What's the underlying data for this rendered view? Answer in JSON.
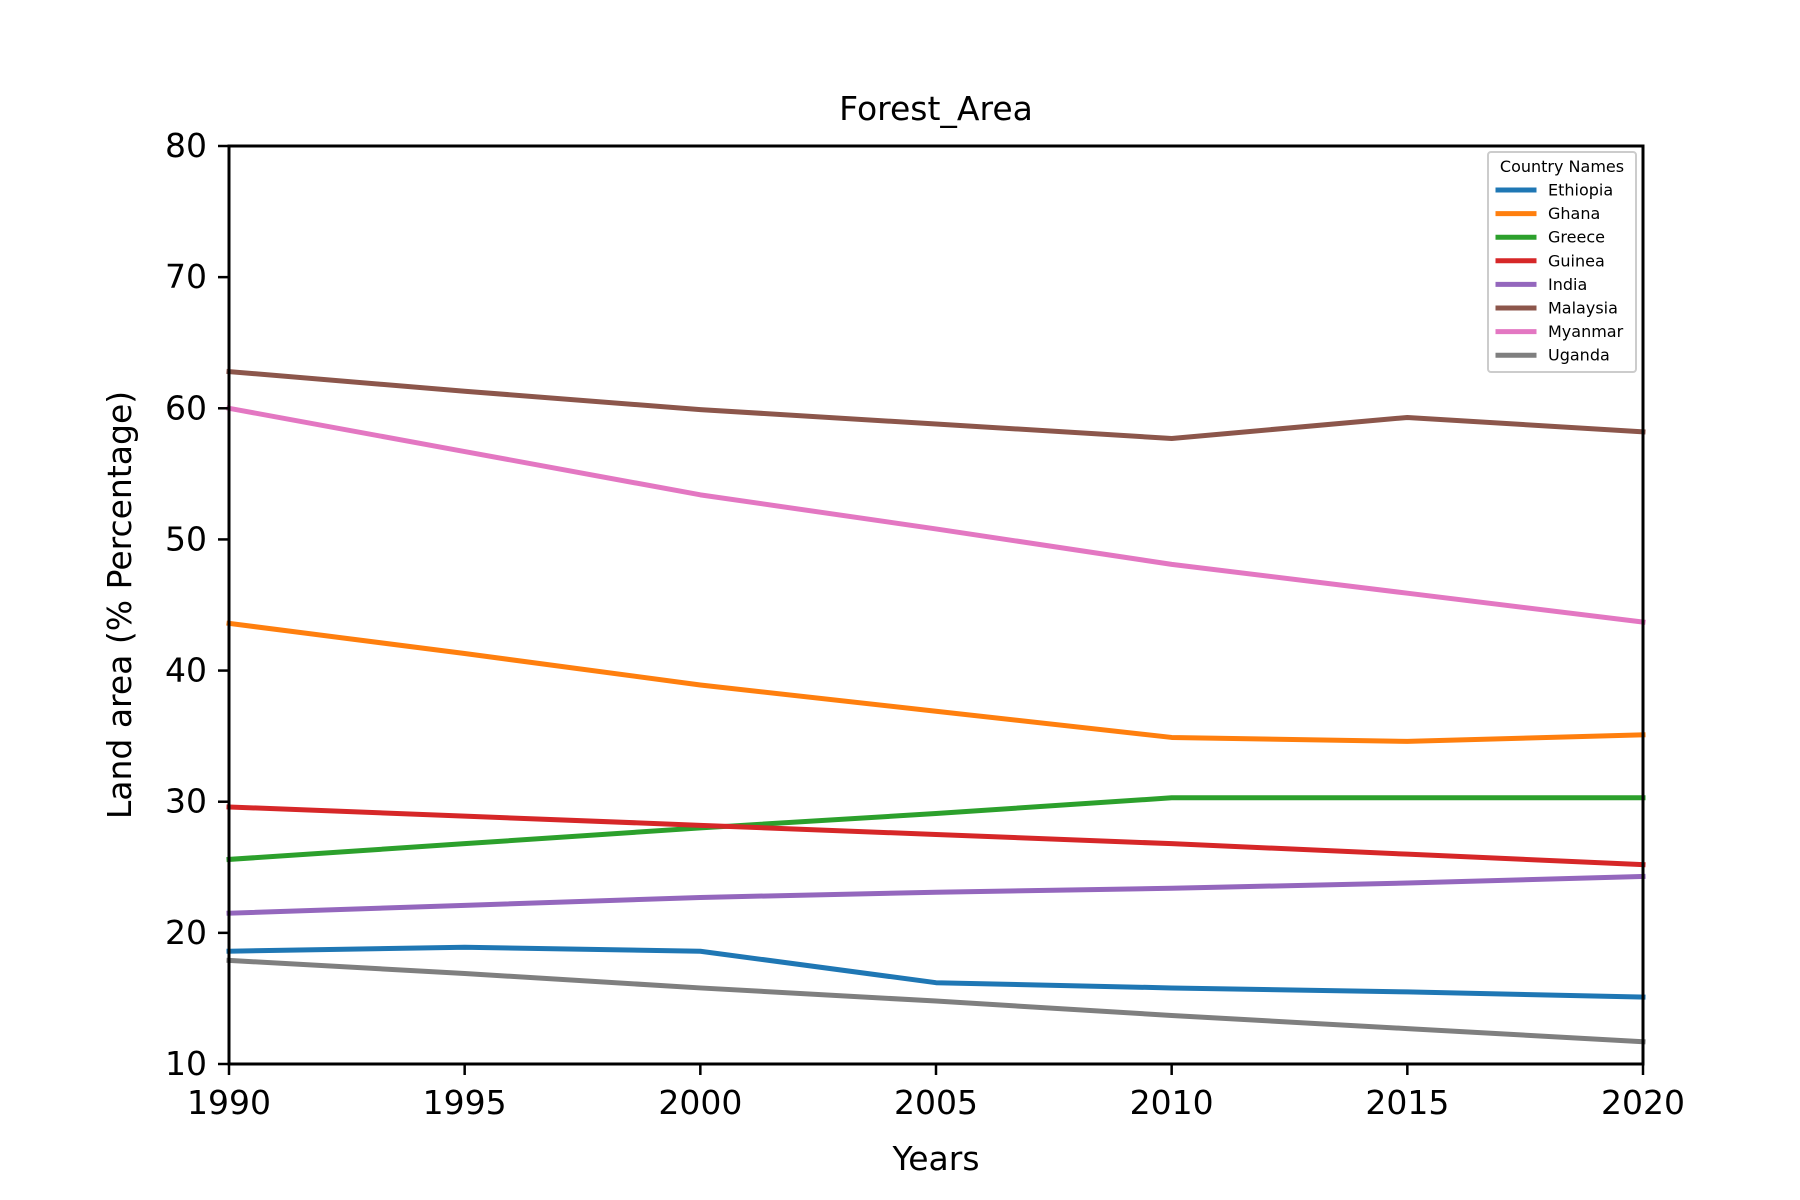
{
  "chart_data": {
    "type": "line",
    "title": "Forest_Area",
    "xlabel": "Years",
    "ylabel": "Land area (% Percentage)",
    "x": [
      1990,
      1995,
      2000,
      2005,
      2010,
      2015,
      2020
    ],
    "xlim": [
      1990,
      2020
    ],
    "ylim": [
      10,
      80
    ],
    "xticks": [
      1990,
      1995,
      2000,
      2005,
      2010,
      2015,
      2020
    ],
    "yticks": [
      10,
      20,
      30,
      40,
      50,
      60,
      70,
      80
    ],
    "grid": false,
    "legend": {
      "title": "Country Names",
      "placement": "upper right"
    },
    "series": [
      {
        "name": "Ethiopia",
        "color": "#1f77b4",
        "values": [
          18.6,
          18.9,
          18.6,
          16.2,
          15.8,
          15.5,
          15.1
        ]
      },
      {
        "name": "Ghana",
        "color": "#ff7f0e",
        "values": [
          43.6,
          41.3,
          38.9,
          36.9,
          34.9,
          34.6,
          35.1
        ]
      },
      {
        "name": "Greece",
        "color": "#2ca02c",
        "values": [
          25.6,
          26.8,
          28.0,
          29.1,
          30.3,
          30.3,
          30.3
        ]
      },
      {
        "name": "Guinea",
        "color": "#d62728",
        "values": [
          29.6,
          28.9,
          28.2,
          27.5,
          26.8,
          26.0,
          25.2
        ]
      },
      {
        "name": "India",
        "color": "#9467bd",
        "values": [
          21.5,
          22.1,
          22.7,
          23.1,
          23.4,
          23.8,
          24.3
        ]
      },
      {
        "name": "Malaysia",
        "color": "#8c564b",
        "values": [
          62.8,
          61.3,
          59.9,
          58.8,
          57.7,
          59.3,
          58.2
        ]
      },
      {
        "name": "Myanmar",
        "color": "#e377c2",
        "values": [
          60.0,
          56.7,
          53.4,
          50.8,
          48.1,
          45.9,
          43.7
        ]
      },
      {
        "name": "Uganda",
        "color": "#7f7f7f",
        "values": [
          17.9,
          16.9,
          15.8,
          14.8,
          13.7,
          12.7,
          11.7
        ]
      }
    ]
  }
}
